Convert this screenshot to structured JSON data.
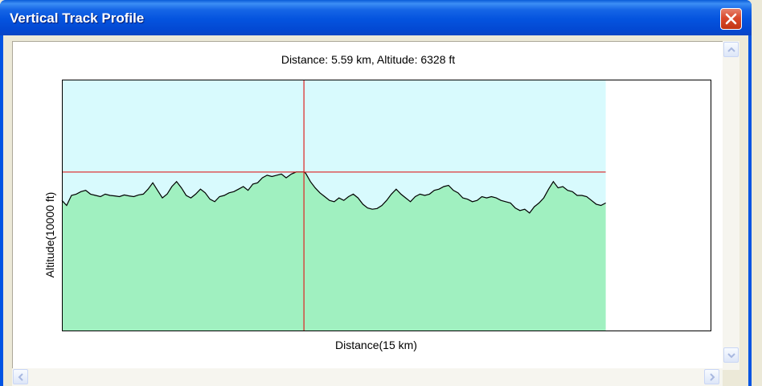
{
  "window": {
    "title": "Vertical Track Profile",
    "icons": {
      "close": "close-icon",
      "scroll_up": "scroll-up-arrow-icon",
      "scroll_down": "scroll-down-arrow-icon",
      "scroll_left": "scroll-left-arrow-icon",
      "scroll_right": "scroll-right-arrow-icon"
    }
  },
  "readout": "Distance: 5.59 km, Altitude: 6328 ft",
  "colors": {
    "sky": "#d8fafd",
    "terrain": "#a0f0c0",
    "profile_line": "#000000",
    "crosshair": "#dd2222"
  },
  "chart_data": {
    "type": "area",
    "xlabel": "Distance(15 km)",
    "ylabel": "Altitude(10000 ft)",
    "xlim": [
      0,
      15
    ],
    "ylim": [
      0,
      10000
    ],
    "grid": false,
    "legend": "none",
    "cursor": {
      "x": 5.59,
      "y": 6328
    },
    "series": [
      {
        "x": [
          0,
          0.11,
          0.22,
          0.33,
          0.44,
          0.55,
          0.66,
          0.78,
          0.89,
          1.0,
          1.11,
          1.22,
          1.33,
          1.44,
          1.55,
          1.66,
          1.77,
          1.88,
          1.99,
          2.1,
          2.21,
          2.32,
          2.43,
          2.54,
          2.65,
          2.76,
          2.87,
          2.98,
          3.09,
          3.2,
          3.31,
          3.42,
          3.53,
          3.64,
          3.75,
          3.86,
          3.97,
          4.08,
          4.19,
          4.3,
          4.41,
          4.52,
          4.63,
          4.74,
          4.85,
          4.96,
          5.07,
          5.18,
          5.3,
          5.41,
          5.52,
          5.59,
          5.63,
          5.74,
          5.85,
          5.96,
          6.07,
          6.18,
          6.29,
          6.4,
          6.51,
          6.62,
          6.73,
          6.84,
          6.95,
          7.06,
          7.17,
          7.28,
          7.39,
          7.5,
          7.61,
          7.72,
          7.83,
          7.94,
          8.05,
          8.16,
          8.27,
          8.38,
          8.49,
          8.6,
          8.71,
          8.82,
          8.93,
          9.04,
          9.15,
          9.26,
          9.37,
          9.48,
          9.59,
          9.7,
          9.81,
          9.92,
          10.03,
          10.14,
          10.25,
          10.36,
          10.47,
          10.58,
          10.69,
          10.8,
          10.91,
          11.02,
          11.13,
          11.24,
          11.35,
          11.46,
          11.57,
          11.68,
          11.79,
          11.9,
          12.01,
          12.12,
          12.23,
          12.34,
          12.45,
          12.56
        ],
        "y": [
          5200,
          5000,
          5400,
          5450,
          5550,
          5600,
          5450,
          5400,
          5350,
          5450,
          5400,
          5380,
          5350,
          5420,
          5380,
          5350,
          5420,
          5450,
          5650,
          5900,
          5600,
          5300,
          5450,
          5750,
          5950,
          5700,
          5400,
          5300,
          5450,
          5650,
          5500,
          5250,
          5150,
          5350,
          5400,
          5500,
          5550,
          5650,
          5750,
          5600,
          5850,
          5900,
          6100,
          6200,
          6150,
          6200,
          6250,
          6100,
          6250,
          6328,
          6328,
          6328,
          6280,
          5950,
          5700,
          5500,
          5350,
          5200,
          5150,
          5300,
          5200,
          5350,
          5450,
          5300,
          5050,
          4900,
          4850,
          4880,
          5000,
          5200,
          5450,
          5650,
          5450,
          5300,
          5150,
          5350,
          5450,
          5400,
          5450,
          5600,
          5650,
          5750,
          5800,
          5600,
          5500,
          5300,
          5250,
          5150,
          5200,
          5350,
          5300,
          5350,
          5300,
          5200,
          5150,
          5100,
          4900,
          4800,
          4850,
          4700,
          4950,
          5100,
          5300,
          5650,
          5950,
          5700,
          5750,
          5600,
          5550,
          5400,
          5400,
          5350,
          5200,
          5050,
          5000,
          5100
        ]
      }
    ]
  }
}
